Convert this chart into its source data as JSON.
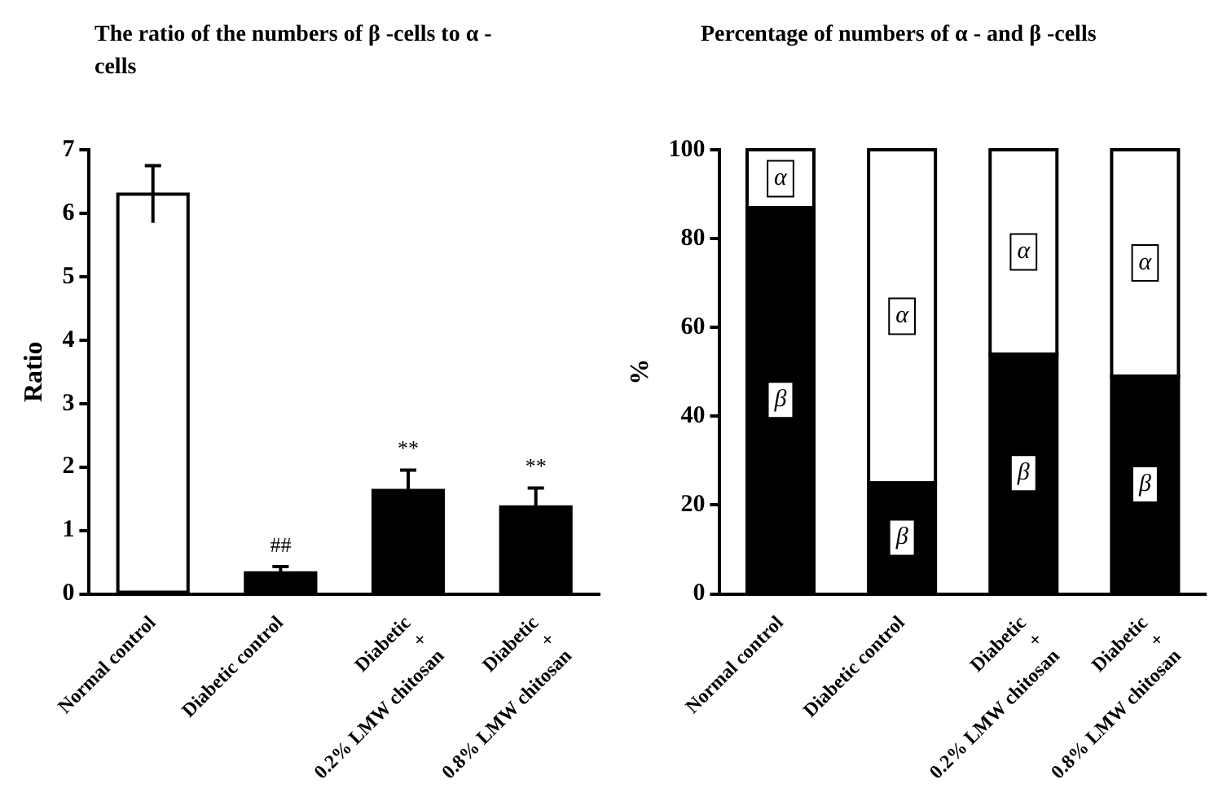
{
  "chart_data": [
    {
      "type": "bar",
      "title": "The ratio of the numbers of β -cells to α -cells",
      "ylabel": "Ratio",
      "categories": [
        "Normal control",
        "Diabetic control",
        "Diabetic + 0.2% LMW chitosan",
        "Diabetic + 0.8% LMW chitosan"
      ],
      "values": [
        6.3,
        0.33,
        1.63,
        1.37
      ],
      "colors": [
        "#ffffff",
        "#000000",
        "#000000",
        "#000000"
      ],
      "errors": [
        0.45,
        0.1,
        0.32,
        0.3
      ],
      "ylim": [
        0,
        7
      ],
      "yticks": [
        0,
        1,
        2,
        3,
        4,
        5,
        6,
        7
      ],
      "annotations": [
        {
          "text": "##",
          "x": "Diabetic control",
          "y": 0.33
        },
        {
          "text": "**",
          "x": "Diabetic + 0.2% LMW chitosan",
          "y": 1.63
        },
        {
          "text": "**",
          "x": "Diabetic + 0.8% LMW chitosan",
          "y": 1.37
        }
      ]
    },
    {
      "type": "bar",
      "stacked": true,
      "title": "Percentage of numbers of α - and β -cells",
      "ylabel": "%",
      "categories": [
        "Normal control",
        "Diabetic control",
        "Diabetic + 0.2% LMW chitosan",
        "Diabetic + 0.8% LMW chitosan"
      ],
      "series": [
        {
          "name": "β",
          "color": "#000000",
          "values": [
            87,
            25,
            54,
            49
          ]
        },
        {
          "name": "α",
          "color": "#ffffff",
          "values": [
            13,
            75,
            46,
            51
          ]
        }
      ],
      "ylim": [
        0,
        100
      ],
      "yticks": [
        0,
        20,
        40,
        60,
        80,
        100
      ]
    }
  ]
}
